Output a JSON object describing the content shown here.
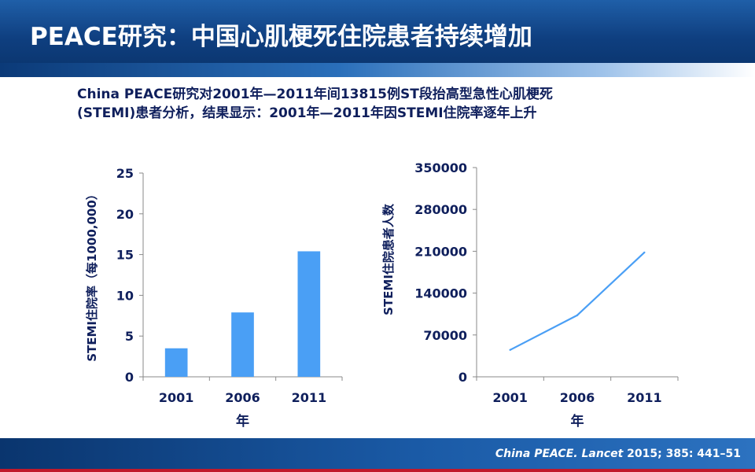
{
  "slide": {
    "title": "PEACE研究：中国心肌梗死住院患者持续增加",
    "intro_line1": "China PEACE研究对2001年—2011年间13815例ST段抬高型急性心肌梗死",
    "intro_line2": "(STEMI)患者分析，结果显示：2001年—2011年因STEMI住院率逐年上升",
    "citation_italic": "China PEACE. Lancet",
    "citation_rest": " 2015; 385: 441–51"
  },
  "colors": {
    "header": "#0f3f80",
    "bar": "#4a9ff5",
    "line": "#4a9ff5",
    "text": "#0f1f5c",
    "footer_accent": "#c0192b"
  },
  "chart_data": [
    {
      "type": "bar",
      "categories": [
        "2001",
        "2006",
        "2011"
      ],
      "values": [
        3.5,
        7.9,
        15.4
      ],
      "yticks": [
        "0",
        "5",
        "10",
        "15",
        "20",
        "25"
      ],
      "ylim": [
        0,
        25
      ],
      "xlabel": "年",
      "ylabel": "STEMI住院率（每1000,000）",
      "grid": false
    },
    {
      "type": "line",
      "categories": [
        "2001",
        "2006",
        "2011"
      ],
      "values": [
        45000,
        103000,
        208000
      ],
      "yticks": [
        "0",
        "70000",
        "140000",
        "210000",
        "280000",
        "350000"
      ],
      "ylim": [
        0,
        350000
      ],
      "xlabel": "年",
      "ylabel": "STEMI住院患者人数",
      "grid": false
    }
  ]
}
